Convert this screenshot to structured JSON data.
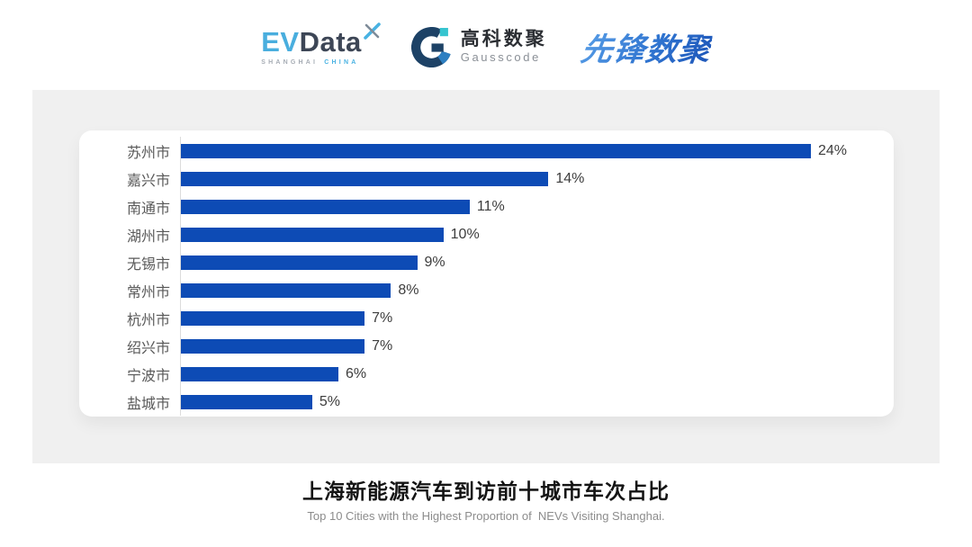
{
  "header": {
    "evdata": {
      "ev": "EV",
      "data": "Data",
      "tagline_left": "SHANGHAI",
      "tagline_right": "CHINA"
    },
    "gausscode": {
      "name_cn": "高科数聚",
      "name_en": "Gausscode"
    },
    "pioneer": {
      "name": "先锋数聚"
    }
  },
  "chart_data": {
    "type": "bar",
    "orientation": "horizontal",
    "title": "上海新能源汽车到访前十城市车次占比",
    "subtitle": "Top 10 Cities with the Highest Proportion of  NEVs Visiting Shanghai.",
    "categories": [
      "苏州市",
      "嘉兴市",
      "南通市",
      "湖州市",
      "无锡市",
      "常州市",
      "杭州市",
      "绍兴市",
      "宁波市",
      "盐城市"
    ],
    "values": [
      24,
      14,
      11,
      10,
      9,
      8,
      7,
      7,
      6,
      5
    ],
    "value_labels": [
      "24%",
      "14%",
      "11%",
      "10%",
      "9%",
      "8%",
      "7%",
      "7%",
      "6%",
      "5%"
    ],
    "unit": "%",
    "xlim": [
      0,
      24
    ],
    "grid": false,
    "legend": false,
    "bar_color": "#0d4bb5",
    "axis_line_color": "#dcdcdc",
    "label_color": "#595959",
    "value_color": "#3d3d3d"
  },
  "footer": {
    "title": "上海新能源汽车到访前十城市车次占比",
    "subtitle": "Top 10 Cities with the Highest Proportion of  NEVs Visiting Shanghai."
  },
  "colors": {
    "panel_bg": "#f0f0f0",
    "card_bg": "#ffffff",
    "evdata_cyan": "#49aede",
    "evdata_dark": "#3d4656",
    "gauss_navy": "#1d4266",
    "gauss_blue": "#2d7fc1",
    "gauss_teal": "#35c4cf",
    "pioneer_blue_light": "#5aa0e8",
    "pioneer_blue_dark": "#1d55b8"
  }
}
